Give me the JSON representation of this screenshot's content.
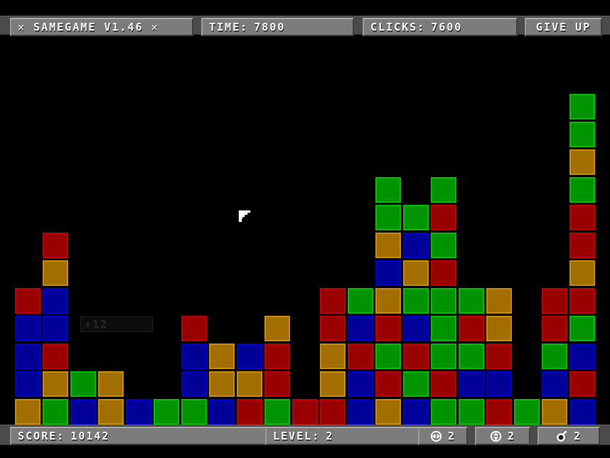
{
  "top_bar": {
    "title": "✕ SAMEGAME V1.46 ✕",
    "time_label": "TIME:",
    "time_value": "7800",
    "clicks_label": "CLICKS:",
    "clicks_value": "7600",
    "give_up_label": "GIVE UP"
  },
  "bottom_bar": {
    "score_label": "SCORE:",
    "score_value": "10142",
    "level_label": "LEVEL:",
    "level_value": "2",
    "powerups": [
      {
        "icon": "horizontal-arrows-icon",
        "count": "2"
      },
      {
        "icon": "vertical-arrows-icon",
        "count": "2"
      },
      {
        "icon": "bomb-icon",
        "count": "2"
      }
    ]
  },
  "popup": {
    "text": "+12"
  },
  "board": {
    "columns": 21,
    "rows": 12,
    "palette": {
      "R": {
        "name": "red",
        "fill": "#990000",
        "rim": "#bf0000"
      },
      "G": {
        "name": "green",
        "fill": "#009300",
        "rim": "#00bd00"
      },
      "B": {
        "name": "blue",
        "fill": "#000099",
        "rim": "#0000cc"
      },
      "O": {
        "name": "orange",
        "fill": "#a36e00",
        "rim": "#c98c00"
      }
    },
    "grid": [
      "....................G",
      "....................G",
      "....................O",
      ".............G.G....G",
      ".............GGR....R",
      ".R...........OBG....R",
      ".O...........BOR....O",
      "RB.........RGOGGGO.RR",
      "BB....R..O.RBRBGRO.RG",
      "BR....BOBR.ORGRGGR.GB",
      "BOGO..BOOR.OBRGRBB.BR",
      "OGBOBGGBRGRRBOBGGRGOB"
    ]
  }
}
